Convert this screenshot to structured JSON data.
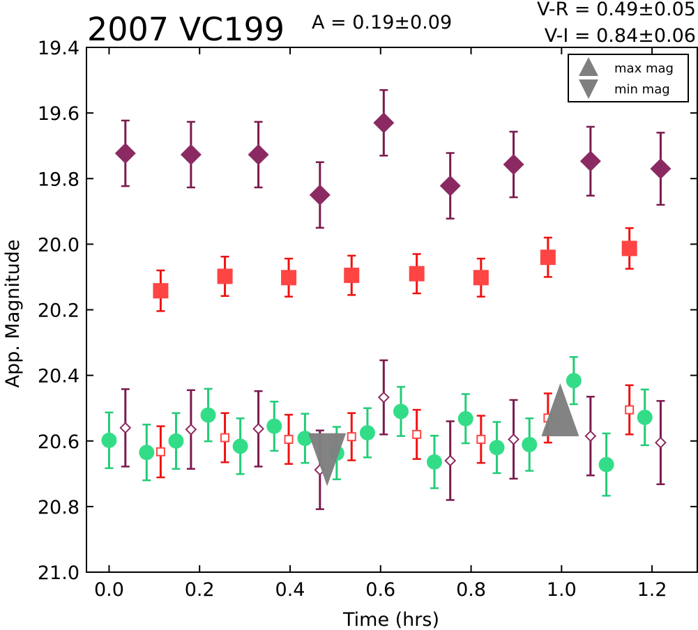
{
  "chart_data": {
    "type": "scatter",
    "title": "2007 VC199",
    "annotations": {
      "amplitude": "A  = 0.19±0.09",
      "v_r": "V-R = 0.49±0.05",
      "v_i": "V-I  = 0.84±0.06"
    },
    "xlabel": "Time (hrs)",
    "ylabel": "App. Magnitude",
    "xlim": [
      -0.05,
      1.3
    ],
    "ylim": [
      21.0,
      19.4
    ],
    "y_inverted": true,
    "grid": false,
    "xticks": [
      "0.0",
      "0.2",
      "0.4",
      "0.6",
      "0.8",
      "1.0",
      "1.2"
    ],
    "yticks": [
      "19.4",
      "19.6",
      "19.8",
      "20.0",
      "20.2",
      "20.4",
      "20.6",
      "20.8",
      "21.0"
    ],
    "legend": {
      "placement": "top-right",
      "entries": [
        {
          "label": "max mag",
          "marker": "triangle-up",
          "color": "#7f7f7f"
        },
        {
          "label": "min mag",
          "marker": "triangle-down",
          "color": "#7f7f7f"
        }
      ]
    },
    "series": [
      {
        "marker": "diamond-filled",
        "color": "#8b2a62",
        "errcolor": "#7a1a4e",
        "points": [
          {
            "x": 0.036,
            "y": 19.723,
            "err": 0.1
          },
          {
            "x": 0.181,
            "y": 19.727,
            "err": 0.1
          },
          {
            "x": 0.33,
            "y": 19.727,
            "err": 0.1
          },
          {
            "x": 0.466,
            "y": 19.85,
            "err": 0.1
          },
          {
            "x": 0.607,
            "y": 19.63,
            "err": 0.1
          },
          {
            "x": 0.754,
            "y": 19.822,
            "err": 0.1
          },
          {
            "x": 0.894,
            "y": 19.757,
            "err": 0.1
          },
          {
            "x": 1.064,
            "y": 19.747,
            "err": 0.105
          },
          {
            "x": 1.219,
            "y": 19.77,
            "err": 0.11
          }
        ]
      },
      {
        "marker": "square-filled",
        "color": "#ff4444",
        "errcolor": "#ee1111",
        "points": [
          {
            "x": 0.114,
            "y": 20.142,
            "err": 0.062
          },
          {
            "x": 0.256,
            "y": 20.098,
            "err": 0.06
          },
          {
            "x": 0.397,
            "y": 20.102,
            "err": 0.058
          },
          {
            "x": 0.536,
            "y": 20.095,
            "err": 0.06
          },
          {
            "x": 0.68,
            "y": 20.09,
            "err": 0.06
          },
          {
            "x": 0.822,
            "y": 20.102,
            "err": 0.058
          },
          {
            "x": 0.97,
            "y": 20.04,
            "err": 0.06
          },
          {
            "x": 1.15,
            "y": 20.013,
            "err": 0.062
          }
        ]
      },
      {
        "marker": "circle-filled",
        "color": "#33dd88",
        "errcolor": "#22cc77",
        "points": [
          {
            "x": 0.0,
            "y": 20.598,
            "err": 0.085
          },
          {
            "x": 0.083,
            "y": 20.635,
            "err": 0.085
          },
          {
            "x": 0.148,
            "y": 20.6,
            "err": 0.085
          },
          {
            "x": 0.219,
            "y": 20.521,
            "err": 0.08
          },
          {
            "x": 0.29,
            "y": 20.616,
            "err": 0.085
          },
          {
            "x": 0.365,
            "y": 20.555,
            "err": 0.075
          },
          {
            "x": 0.433,
            "y": 20.592,
            "err": 0.075
          },
          {
            "x": 0.503,
            "y": 20.637,
            "err": 0.08
          },
          {
            "x": 0.571,
            "y": 20.575,
            "err": 0.075
          },
          {
            "x": 0.645,
            "y": 20.51,
            "err": 0.075
          },
          {
            "x": 0.719,
            "y": 20.664,
            "err": 0.08
          },
          {
            "x": 0.788,
            "y": 20.532,
            "err": 0.075
          },
          {
            "x": 0.857,
            "y": 20.62,
            "err": 0.078
          },
          {
            "x": 0.929,
            "y": 20.611,
            "err": 0.08
          },
          {
            "x": 1.027,
            "y": 20.416,
            "err": 0.072
          },
          {
            "x": 1.099,
            "y": 20.672,
            "err": 0.095
          },
          {
            "x": 1.184,
            "y": 20.528,
            "err": 0.085
          }
        ]
      },
      {
        "marker": "square-open",
        "color": "#ff4444",
        "errcolor": "#ee1111",
        "points": [
          {
            "x": 0.114,
            "y": 20.633,
            "err": 0.078
          },
          {
            "x": 0.256,
            "y": 20.59,
            "err": 0.075
          },
          {
            "x": 0.397,
            "y": 20.595,
            "err": 0.075
          },
          {
            "x": 0.536,
            "y": 20.587,
            "err": 0.072
          },
          {
            "x": 0.68,
            "y": 20.58,
            "err": 0.075
          },
          {
            "x": 0.822,
            "y": 20.595,
            "err": 0.072
          },
          {
            "x": 0.97,
            "y": 20.53,
            "err": 0.075
          },
          {
            "x": 1.15,
            "y": 20.505,
            "err": 0.075
          }
        ]
      },
      {
        "marker": "diamond-open",
        "color": "#8b2a62",
        "errcolor": "#7a1a4e",
        "points": [
          {
            "x": 0.036,
            "y": 20.56,
            "err": 0.118
          },
          {
            "x": 0.181,
            "y": 20.565,
            "err": 0.12
          },
          {
            "x": 0.33,
            "y": 20.563,
            "err": 0.115
          },
          {
            "x": 0.466,
            "y": 20.688,
            "err": 0.12
          },
          {
            "x": 0.607,
            "y": 20.467,
            "err": 0.113
          },
          {
            "x": 0.754,
            "y": 20.66,
            "err": 0.12
          },
          {
            "x": 0.894,
            "y": 20.595,
            "err": 0.12
          },
          {
            "x": 1.064,
            "y": 20.585,
            "err": 0.12
          },
          {
            "x": 1.219,
            "y": 20.605,
            "err": 0.127
          }
        ]
      }
    ],
    "markers": [
      {
        "label": "min mag",
        "marker": "triangle-down",
        "x": 0.482,
        "y": 20.657,
        "color": "#7f7f7f"
      },
      {
        "label": "max mag",
        "marker": "triangle-up",
        "x": 0.997,
        "y": 20.505,
        "color": "#7f7f7f"
      }
    ]
  }
}
